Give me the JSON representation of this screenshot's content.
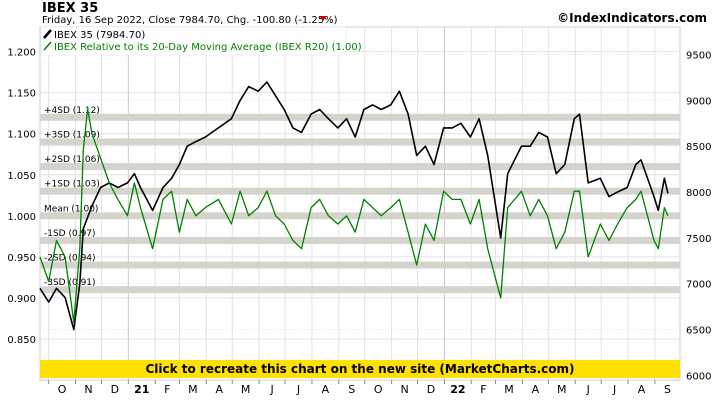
{
  "header": {
    "title": "IBEX 35",
    "subtitle": "Friday, 16 Sep 2022, Close 7984.70, Chg. -100.80 (-1.25%)",
    "down_arrow_color": "#d00000",
    "site": "©IndexIndicators.com"
  },
  "legend": {
    "price_label": "IBEX 35 (7984.70)",
    "ratio_label": "IBEX Relative to its 20-Day Moving Average (IBEX R20) (1.00)"
  },
  "banner": {
    "text": "Click to recreate this chart on the new site (MarketCharts.com)",
    "color": "#ffe000"
  },
  "colors": {
    "price": "#000000",
    "ratio": "#008000",
    "ratio_axis": "#008000",
    "band": "#d4d4cc",
    "grid": "#e2e2e2",
    "frame": "#cfcfcf"
  },
  "chart_data": {
    "type": "line",
    "left_axis": {
      "ticks": [
        "0.850",
        "0.900",
        "0.950",
        "1.000",
        "1.050",
        "1.100",
        "1.150",
        "1.200"
      ],
      "range": [
        0.8,
        1.23
      ]
    },
    "right_axis": {
      "ticks": [
        "6000",
        "6500",
        "7000",
        "7500",
        "8000",
        "8500",
        "9000",
        "9500"
      ],
      "range": [
        5950,
        9800
      ]
    },
    "x_axis": {
      "labels": [
        "O",
        "N",
        "D",
        "21",
        "F",
        "M",
        "A",
        "M",
        "J",
        "J",
        "A",
        "S",
        "O",
        "N",
        "D",
        "22",
        "F",
        "M",
        "A",
        "M",
        "J",
        "J",
        "A",
        "S"
      ],
      "year_labels": [
        "21",
        "22"
      ],
      "range": [
        "2020-09-21",
        "2022-09-30"
      ]
    },
    "bands": [
      {
        "label": "+4SD (1.12)",
        "value": 1.12
      },
      {
        "label": "+3SD (1.09)",
        "value": 1.09
      },
      {
        "label": "+2SD (1.06)",
        "value": 1.06
      },
      {
        "label": "+1SD (1.03)",
        "value": 1.03
      },
      {
        "label": "Mean (1.00)",
        "value": 1.0
      },
      {
        "label": "-1SD (0.97)",
        "value": 0.97
      },
      {
        "label": "-2SD (0.94)",
        "value": 0.94
      },
      {
        "label": "-3SD (0.91)",
        "value": 0.91
      }
    ],
    "series": [
      {
        "name": "IBEX 35 (7984.70)",
        "axis": "right",
        "points": [
          [
            "2020-09-21",
            6950
          ],
          [
            "2020-10-01",
            6800
          ],
          [
            "2020-10-10",
            6950
          ],
          [
            "2020-10-20",
            6850
          ],
          [
            "2020-10-30",
            6500
          ],
          [
            "2020-11-06",
            7000
          ],
          [
            "2020-11-10",
            7600
          ],
          [
            "2020-11-20",
            7850
          ],
          [
            "2020-11-30",
            8050
          ],
          [
            "2020-12-10",
            8100
          ],
          [
            "2020-12-20",
            8050
          ],
          [
            "2020-12-31",
            8100
          ],
          [
            "2021-01-08",
            8200
          ],
          [
            "2021-01-15",
            8050
          ],
          [
            "2021-01-29",
            7800
          ],
          [
            "2021-02-10",
            8050
          ],
          [
            "2021-02-20",
            8150
          ],
          [
            "2021-03-01",
            8300
          ],
          [
            "2021-03-10",
            8500
          ],
          [
            "2021-03-20",
            8550
          ],
          [
            "2021-03-31",
            8600
          ],
          [
            "2021-04-15",
            8700
          ],
          [
            "2021-04-30",
            8800
          ],
          [
            "2021-05-10",
            9000
          ],
          [
            "2021-05-20",
            9150
          ],
          [
            "2021-05-31",
            9100
          ],
          [
            "2021-06-10",
            9200
          ],
          [
            "2021-06-20",
            9050
          ],
          [
            "2021-06-30",
            8900
          ],
          [
            "2021-07-10",
            8700
          ],
          [
            "2021-07-20",
            8650
          ],
          [
            "2021-07-31",
            8850
          ],
          [
            "2021-08-10",
            8900
          ],
          [
            "2021-08-20",
            8800
          ],
          [
            "2021-08-31",
            8700
          ],
          [
            "2021-09-10",
            8800
          ],
          [
            "2021-09-20",
            8600
          ],
          [
            "2021-09-30",
            8900
          ],
          [
            "2021-10-10",
            8950
          ],
          [
            "2021-10-20",
            8900
          ],
          [
            "2021-10-31",
            8950
          ],
          [
            "2021-11-10",
            9100
          ],
          [
            "2021-11-20",
            8850
          ],
          [
            "2021-11-30",
            8400
          ],
          [
            "2021-12-10",
            8500
          ],
          [
            "2021-12-20",
            8300
          ],
          [
            "2021-12-31",
            8700
          ],
          [
            "2022-01-10",
            8700
          ],
          [
            "2022-01-20",
            8750
          ],
          [
            "2022-01-31",
            8600
          ],
          [
            "2022-02-10",
            8800
          ],
          [
            "2022-02-20",
            8400
          ],
          [
            "2022-03-07",
            7500
          ],
          [
            "2022-03-15",
            8200
          ],
          [
            "2022-03-31",
            8500
          ],
          [
            "2022-04-10",
            8500
          ],
          [
            "2022-04-20",
            8650
          ],
          [
            "2022-04-30",
            8600
          ],
          [
            "2022-05-10",
            8200
          ],
          [
            "2022-05-20",
            8300
          ],
          [
            "2022-05-31",
            8800
          ],
          [
            "2022-06-06",
            8850
          ],
          [
            "2022-06-16",
            8100
          ],
          [
            "2022-06-30",
            8150
          ],
          [
            "2022-07-10",
            7950
          ],
          [
            "2022-07-20",
            8000
          ],
          [
            "2022-07-31",
            8050
          ],
          [
            "2022-08-10",
            8300
          ],
          [
            "2022-08-16",
            8350
          ],
          [
            "2022-08-31",
            7950
          ],
          [
            "2022-09-05",
            7800
          ],
          [
            "2022-09-12",
            8150
          ],
          [
            "2022-09-16",
            7985
          ]
        ]
      },
      {
        "name": "IBEX Relative to its 20-Day Moving Average (IBEX R20) (1.00)",
        "axis": "left",
        "points": [
          [
            "2020-09-21",
            0.95
          ],
          [
            "2020-10-01",
            0.92
          ],
          [
            "2020-10-10",
            0.97
          ],
          [
            "2020-10-20",
            0.95
          ],
          [
            "2020-10-30",
            0.87
          ],
          [
            "2020-11-06",
            0.96
          ],
          [
            "2020-11-10",
            1.08
          ],
          [
            "2020-11-15",
            1.13
          ],
          [
            "2020-11-20",
            1.1
          ],
          [
            "2020-11-30",
            1.07
          ],
          [
            "2020-12-10",
            1.04
          ],
          [
            "2020-12-20",
            1.02
          ],
          [
            "2020-12-31",
            1.0
          ],
          [
            "2021-01-08",
            1.04
          ],
          [
            "2021-01-15",
            1.01
          ],
          [
            "2021-01-29",
            0.96
          ],
          [
            "2021-02-10",
            1.02
          ],
          [
            "2021-02-20",
            1.03
          ],
          [
            "2021-03-01",
            0.98
          ],
          [
            "2021-03-10",
            1.02
          ],
          [
            "2021-03-20",
            1.0
          ],
          [
            "2021-03-31",
            1.01
          ],
          [
            "2021-04-15",
            1.02
          ],
          [
            "2021-04-30",
            0.99
          ],
          [
            "2021-05-10",
            1.03
          ],
          [
            "2021-05-20",
            1.0
          ],
          [
            "2021-05-31",
            1.01
          ],
          [
            "2021-06-10",
            1.03
          ],
          [
            "2021-06-20",
            1.0
          ],
          [
            "2021-06-30",
            0.99
          ],
          [
            "2021-07-10",
            0.97
          ],
          [
            "2021-07-20",
            0.96
          ],
          [
            "2021-07-31",
            1.01
          ],
          [
            "2021-08-10",
            1.02
          ],
          [
            "2021-08-20",
            1.0
          ],
          [
            "2021-08-31",
            0.99
          ],
          [
            "2021-09-10",
            1.0
          ],
          [
            "2021-09-20",
            0.98
          ],
          [
            "2021-09-30",
            1.02
          ],
          [
            "2021-10-10",
            1.01
          ],
          [
            "2021-10-20",
            1.0
          ],
          [
            "2021-10-31",
            1.01
          ],
          [
            "2021-11-10",
            1.02
          ],
          [
            "2021-11-20",
            0.98
          ],
          [
            "2021-11-30",
            0.94
          ],
          [
            "2021-12-10",
            0.99
          ],
          [
            "2021-12-20",
            0.97
          ],
          [
            "2021-12-31",
            1.03
          ],
          [
            "2022-01-10",
            1.02
          ],
          [
            "2022-01-20",
            1.02
          ],
          [
            "2022-01-31",
            0.99
          ],
          [
            "2022-02-10",
            1.02
          ],
          [
            "2022-02-20",
            0.96
          ],
          [
            "2022-03-07",
            0.9
          ],
          [
            "2022-03-15",
            1.01
          ],
          [
            "2022-03-31",
            1.03
          ],
          [
            "2022-04-10",
            1.0
          ],
          [
            "2022-04-20",
            1.02
          ],
          [
            "2022-04-30",
            1.0
          ],
          [
            "2022-05-10",
            0.96
          ],
          [
            "2022-05-20",
            0.98
          ],
          [
            "2022-05-31",
            1.03
          ],
          [
            "2022-06-06",
            1.03
          ],
          [
            "2022-06-16",
            0.95
          ],
          [
            "2022-06-30",
            0.99
          ],
          [
            "2022-07-10",
            0.97
          ],
          [
            "2022-07-20",
            0.99
          ],
          [
            "2022-07-31",
            1.01
          ],
          [
            "2022-08-10",
            1.02
          ],
          [
            "2022-08-16",
            1.03
          ],
          [
            "2022-08-31",
            0.97
          ],
          [
            "2022-09-05",
            0.96
          ],
          [
            "2022-09-12",
            1.01
          ],
          [
            "2022-09-16",
            1.0
          ]
        ]
      }
    ]
  }
}
